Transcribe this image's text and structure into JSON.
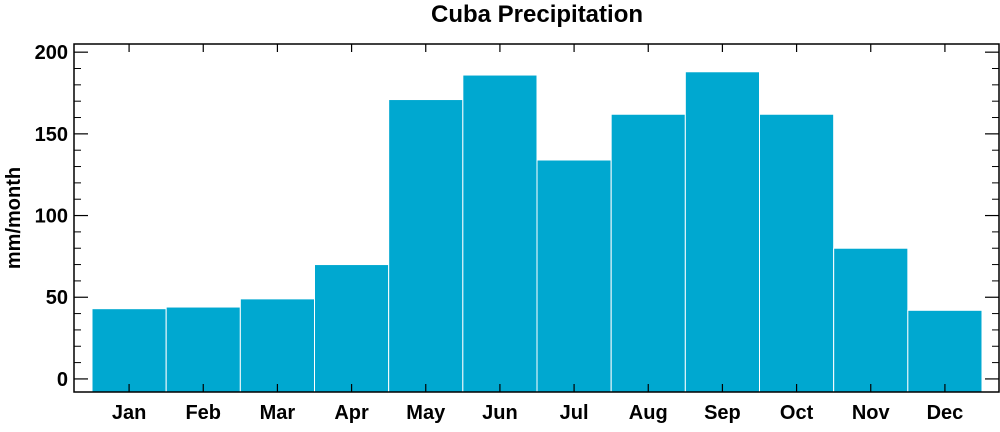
{
  "chart_data": {
    "type": "bar",
    "title": "Cuba Precipitation",
    "xlabel": "",
    "ylabel": "mm/month",
    "categories": [
      "Jan",
      "Feb",
      "Mar",
      "Apr",
      "May",
      "Jun",
      "Jul",
      "Aug",
      "Sep",
      "Oct",
      "Nov",
      "Dec"
    ],
    "values": [
      43,
      44,
      49,
      70,
      171,
      186,
      134,
      162,
      188,
      162,
      80,
      42
    ],
    "ylim": [
      -8,
      205
    ],
    "yticks": [
      0,
      50,
      100,
      150,
      200
    ],
    "ytick_labels": [
      "0",
      "50",
      "100",
      "150",
      "200"
    ],
    "bar_color": "#00a8d0",
    "bar_edge_color": "#ffffff",
    "grid": false,
    "legend": "none"
  }
}
